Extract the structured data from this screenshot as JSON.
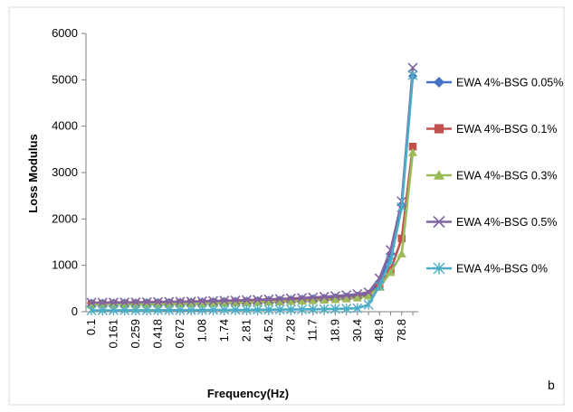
{
  "chart_data": {
    "type": "line",
    "title": "",
    "xlabel": "Frequency(Hz)",
    "ylabel": "Loss Modulus",
    "panel_label": "b",
    "ylim": [
      0,
      6000
    ],
    "yticks": [
      0,
      1000,
      2000,
      3000,
      4000,
      5000,
      6000
    ],
    "yticks_labels": [
      "0",
      "1000",
      "2000",
      "3000",
      "4000",
      "5000",
      "6000"
    ],
    "x_tick_labels": [
      "0.1",
      "0.161",
      "0.259",
      "0.418",
      "0.672",
      "1.08",
      "1.74",
      "2.81",
      "4.52",
      "7.28",
      "11.7",
      "18.9",
      "30.4",
      "48.9",
      "78.8"
    ],
    "x": [
      0.1,
      0.127,
      0.161,
      0.204,
      0.259,
      0.329,
      0.418,
      0.53,
      0.672,
      0.853,
      1.08,
      1.37,
      1.74,
      2.21,
      2.81,
      3.56,
      4.52,
      5.74,
      7.28,
      9.24,
      11.7,
      14.9,
      18.9,
      24,
      30.4,
      38.6,
      48.9,
      62.1,
      78.8,
      100
    ],
    "legend_position": "right",
    "grid": false,
    "series": [
      {
        "name": "EWA 4%-BSG 0.05%",
        "color": "#4472C4",
        "marker": "diamond",
        "values": [
          185,
          186,
          188,
          190,
          192,
          194,
          197,
          200,
          204,
          208,
          212,
          216,
          221,
          226,
          232,
          238,
          245,
          252,
          260,
          270,
          280,
          292,
          305,
          320,
          340,
          380,
          650,
          1250,
          2300,
          5080
        ]
      },
      {
        "name": "EWA 4%-BSG 0.1%",
        "color": "#C0504D",
        "marker": "square",
        "values": [
          160,
          161,
          163,
          165,
          167,
          169,
          172,
          175,
          178,
          182,
          186,
          190,
          195,
          200,
          206,
          212,
          219,
          226,
          234,
          243,
          252,
          263,
          275,
          290,
          310,
          350,
          550,
          900,
          1580,
          3560
        ]
      },
      {
        "name": "EWA 4%-BSG 0.3%",
        "color": "#9BBB59",
        "marker": "triangle",
        "values": [
          150,
          151,
          153,
          155,
          157,
          159,
          162,
          165,
          168,
          172,
          176,
          180,
          185,
          190,
          196,
          202,
          209,
          216,
          224,
          233,
          242,
          253,
          265,
          280,
          300,
          340,
          530,
          850,
          1250,
          3430
        ]
      },
      {
        "name": "EWA 4%-BSG 0.5%",
        "color": "#8064A2",
        "marker": "x",
        "values": [
          195,
          197,
          199,
          201,
          204,
          207,
          210,
          213,
          217,
          221,
          226,
          231,
          237,
          243,
          250,
          258,
          266,
          275,
          285,
          296,
          308,
          322,
          338,
          356,
          380,
          420,
          720,
          1330,
          2380,
          5260
        ]
      },
      {
        "name": "EWA 4%-BSG 0%",
        "color": "#4BACC6",
        "marker": "star",
        "values": [
          30,
          30,
          31,
          31,
          32,
          32,
          33,
          33,
          34,
          35,
          36,
          37,
          38,
          39,
          40,
          42,
          44,
          46,
          48,
          50,
          53,
          56,
          60,
          65,
          75,
          150,
          560,
          1100,
          2250,
          5100
        ]
      }
    ]
  }
}
